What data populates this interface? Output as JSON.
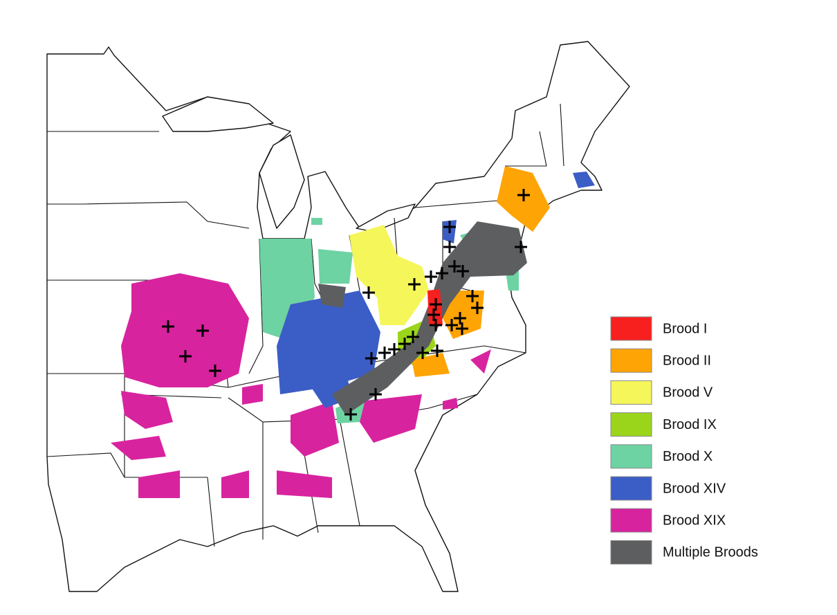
{
  "legend": {
    "items": [
      {
        "label": "Brood I",
        "color": "#f81f1f"
      },
      {
        "label": "Brood II",
        "color": "#fea405"
      },
      {
        "label": "Brood V",
        "color": "#f5f65a"
      },
      {
        "label": "Brood IX",
        "color": "#9bd51b"
      },
      {
        "label": "Brood X",
        "color": "#6dd3a2"
      },
      {
        "label": "Brood XIV",
        "color": "#3b5dc6"
      },
      {
        "label": "Brood XIX",
        "color": "#d8239f"
      },
      {
        "label": "Multiple Broods",
        "color": "#5d5e60"
      }
    ]
  }
}
